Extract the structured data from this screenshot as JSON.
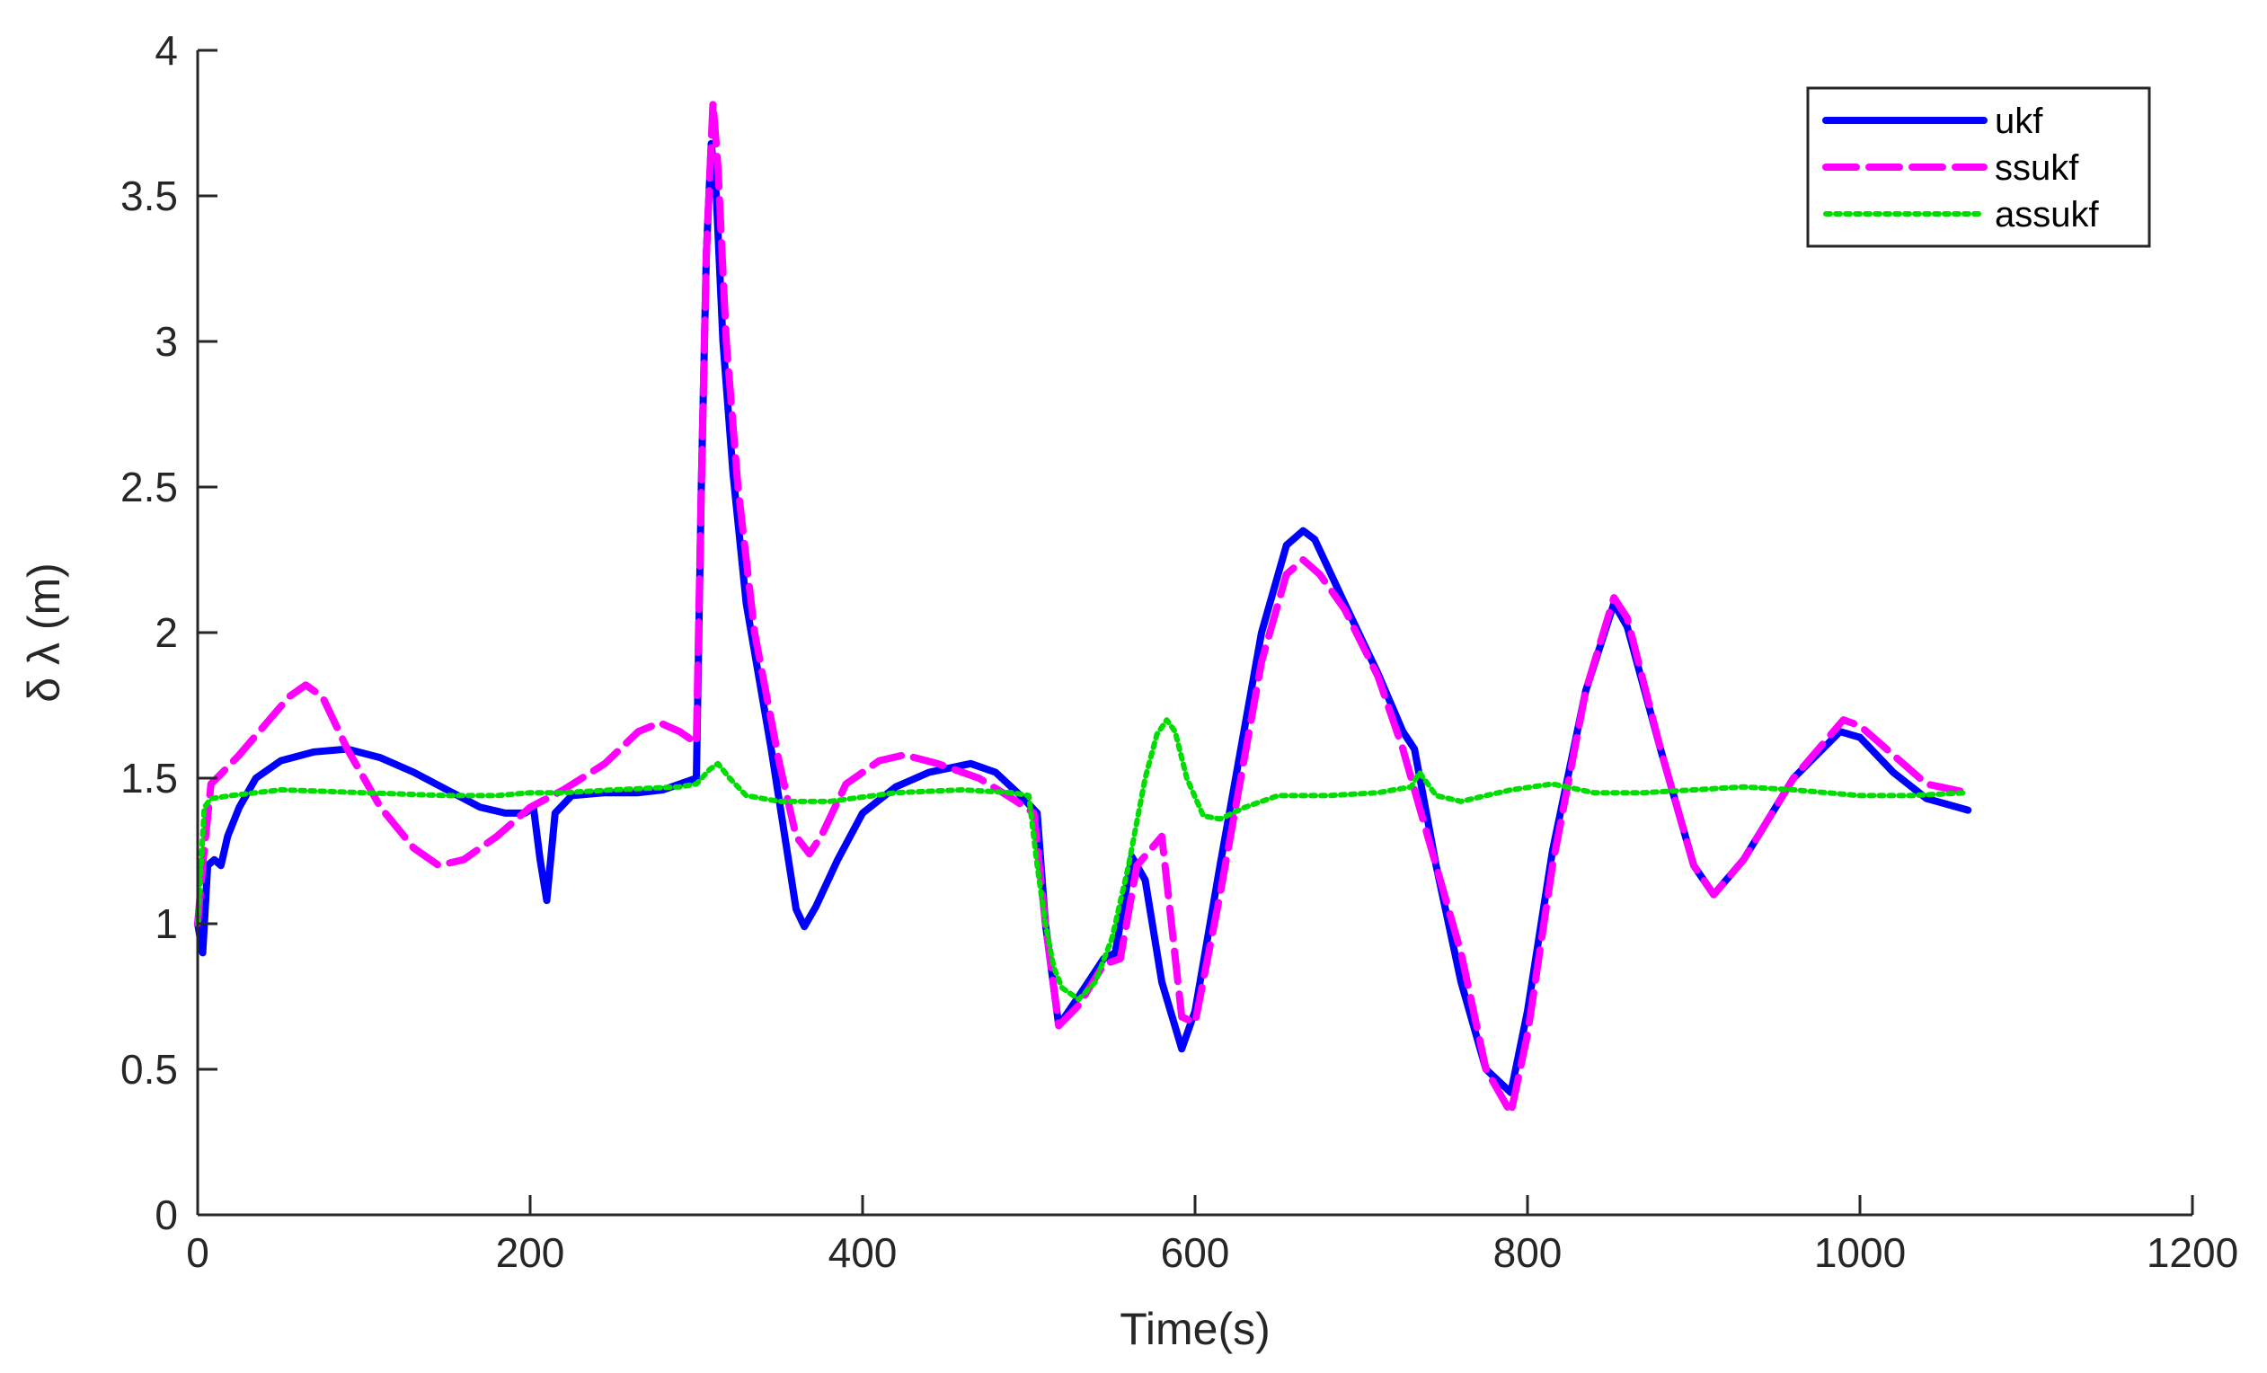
{
  "chart_data": {
    "type": "line",
    "title": "",
    "xlabel": "Time(s)",
    "ylabel": "δ λ (m)",
    "xlim": [
      0,
      1200
    ],
    "ylim": [
      0,
      4
    ],
    "xticks": [
      0,
      200,
      400,
      600,
      800,
      1000,
      1200
    ],
    "yticks": [
      0,
      0.5,
      1,
      1.5,
      2,
      2.5,
      3,
      3.5,
      4
    ],
    "xtick_labels": [
      "0",
      "200",
      "400",
      "600",
      "800",
      "1000",
      "1200"
    ],
    "ytick_labels": [
      "0",
      "0.5",
      "1",
      "1.5",
      "2",
      "2.5",
      "3",
      "3.5",
      "4"
    ],
    "grid": false,
    "legend_position": "top-right",
    "series": [
      {
        "name": "ukf",
        "color": "#0000ff",
        "style": "solid",
        "x": [
          0,
          3,
          6,
          10,
          14,
          18,
          25,
          35,
          50,
          70,
          90,
          110,
          130,
          150,
          170,
          185,
          197,
          202,
          206,
          210,
          215,
          225,
          245,
          265,
          280,
          290,
          300,
          303,
          306,
          309,
          312,
          316,
          322,
          330,
          345,
          360,
          365,
          372,
          385,
          400,
          420,
          440,
          465,
          480,
          495,
          505,
          510,
          518,
          530,
          545,
          552,
          555,
          562,
          570,
          580,
          592,
          600,
          615,
          640,
          655,
          665,
          672,
          690,
          710,
          725,
          732,
          745,
          760,
          775,
          790,
          800,
          815,
          835,
          852,
          860,
          880,
          900,
          912,
          930,
          960,
          988,
          1000,
          1020,
          1040,
          1065
        ],
        "y": [
          1.0,
          0.9,
          1.2,
          1.22,
          1.2,
          1.3,
          1.4,
          1.5,
          1.56,
          1.59,
          1.6,
          1.57,
          1.52,
          1.46,
          1.4,
          1.38,
          1.38,
          1.4,
          1.22,
          1.08,
          1.38,
          1.44,
          1.45,
          1.45,
          1.46,
          1.48,
          1.5,
          2.5,
          3.3,
          3.68,
          3.5,
          3.0,
          2.55,
          2.1,
          1.6,
          1.05,
          0.99,
          1.06,
          1.22,
          1.38,
          1.47,
          1.52,
          1.55,
          1.52,
          1.44,
          1.38,
          1.0,
          0.65,
          0.75,
          0.88,
          0.9,
          1.0,
          1.23,
          1.15,
          0.8,
          0.57,
          0.7,
          1.2,
          2.0,
          2.3,
          2.35,
          2.32,
          2.1,
          1.86,
          1.66,
          1.6,
          1.2,
          0.8,
          0.5,
          0.42,
          0.7,
          1.25,
          1.8,
          2.1,
          2.02,
          1.6,
          1.2,
          1.1,
          1.22,
          1.5,
          1.66,
          1.64,
          1.52,
          1.43,
          1.39
        ]
      },
      {
        "name": "ssukf",
        "color": "#ff00ff",
        "style": "dashed",
        "x": [
          0,
          3,
          8,
          15,
          25,
          40,
          55,
          65,
          75,
          90,
          110,
          130,
          145,
          160,
          180,
          200,
          220,
          245,
          265,
          278,
          290,
          300,
          303,
          306,
          310,
          313,
          318,
          325,
          335,
          350,
          360,
          368,
          375,
          390,
          410,
          425,
          445,
          470,
          490,
          503,
          510,
          518,
          530,
          545,
          555,
          565,
          580,
          592,
          600,
          615,
          640,
          655,
          665,
          675,
          690,
          710,
          725,
          740,
          760,
          775,
          790,
          800,
          815,
          835,
          852,
          860,
          880,
          900,
          912,
          930,
          960,
          990,
          1000,
          1020,
          1040,
          1065
        ],
        "y": [
          1.0,
          1.2,
          1.48,
          1.52,
          1.58,
          1.68,
          1.78,
          1.82,
          1.78,
          1.6,
          1.4,
          1.26,
          1.2,
          1.22,
          1.3,
          1.4,
          1.46,
          1.55,
          1.66,
          1.69,
          1.66,
          1.62,
          2.5,
          3.3,
          3.82,
          3.6,
          3.0,
          2.5,
          2.0,
          1.55,
          1.3,
          1.24,
          1.3,
          1.48,
          1.56,
          1.58,
          1.55,
          1.5,
          1.43,
          1.38,
          1.0,
          0.65,
          0.72,
          0.86,
          0.88,
          1.2,
          1.3,
          0.68,
          0.66,
          1.1,
          1.9,
          2.2,
          2.25,
          2.2,
          2.08,
          1.85,
          1.6,
          1.3,
          0.9,
          0.5,
          0.35,
          0.62,
          1.2,
          1.8,
          2.12,
          2.05,
          1.6,
          1.2,
          1.1,
          1.22,
          1.5,
          1.7,
          1.68,
          1.58,
          1.48,
          1.45
        ]
      },
      {
        "name": "assukf",
        "color": "#00dd00",
        "style": "dotted",
        "x": [
          0,
          2,
          4,
          8,
          20,
          50,
          100,
          150,
          180,
          200,
          220,
          250,
          290,
          300,
          308,
          313,
          320,
          330,
          350,
          380,
          420,
          460,
          490,
          500,
          505,
          510,
          515,
          520,
          530,
          540,
          550,
          560,
          570,
          577,
          583,
          588,
          595,
          605,
          615,
          630,
          650,
          680,
          710,
          730,
          735,
          745,
          760,
          790,
          815,
          840,
          870,
          900,
          930,
          960,
          1000,
          1030,
          1065
        ],
        "y": [
          1.0,
          1.2,
          1.4,
          1.43,
          1.44,
          1.46,
          1.45,
          1.44,
          1.44,
          1.45,
          1.45,
          1.46,
          1.47,
          1.48,
          1.53,
          1.55,
          1.5,
          1.44,
          1.42,
          1.42,
          1.45,
          1.46,
          1.45,
          1.44,
          1.2,
          1.0,
          0.85,
          0.78,
          0.74,
          0.8,
          0.95,
          1.2,
          1.5,
          1.65,
          1.7,
          1.66,
          1.5,
          1.37,
          1.36,
          1.4,
          1.44,
          1.44,
          1.45,
          1.47,
          1.52,
          1.44,
          1.42,
          1.46,
          1.48,
          1.45,
          1.45,
          1.46,
          1.47,
          1.46,
          1.44,
          1.44,
          1.45
        ]
      }
    ]
  }
}
